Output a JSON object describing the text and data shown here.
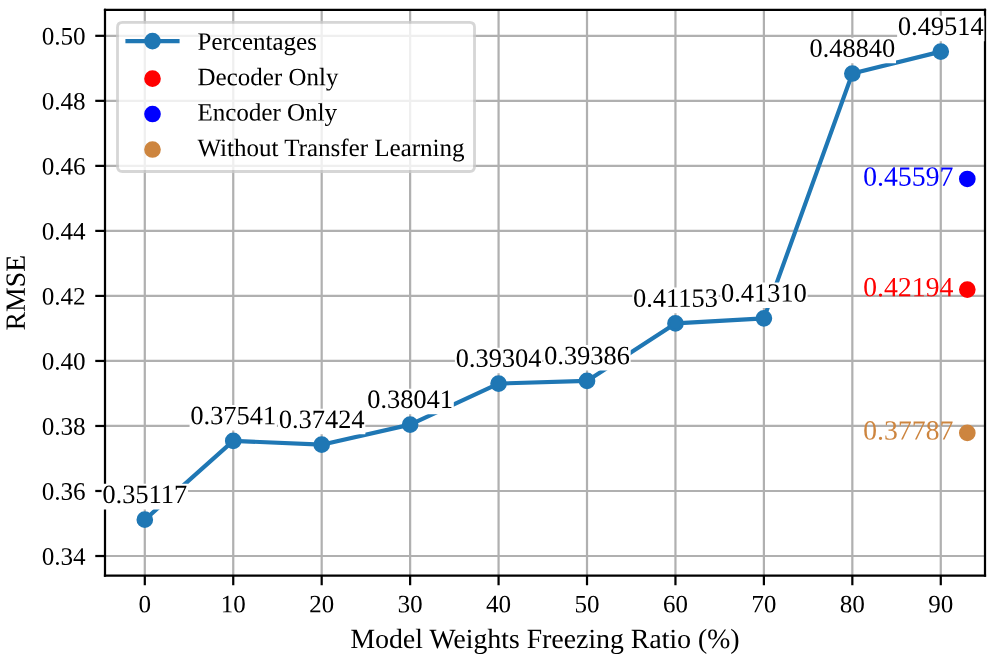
{
  "chart_data": {
    "type": "line",
    "xlabel": "Model Weights Freezing Ratio (%)",
    "ylabel": "RMSE",
    "xlim": [
      -4.5,
      95
    ],
    "xticks": [
      0,
      10,
      20,
      30,
      40,
      50,
      60,
      70,
      80,
      90
    ],
    "ylim": [
      0.334,
      0.508
    ],
    "yticks": [
      {
        "value": 0.34,
        "label": "0.34"
      },
      {
        "value": 0.36,
        "label": "0.36"
      },
      {
        "value": 0.38,
        "label": "0.38"
      },
      {
        "value": 0.4,
        "label": "0.40"
      },
      {
        "value": 0.42,
        "label": "0.42"
      },
      {
        "value": 0.44,
        "label": "0.44"
      },
      {
        "value": 0.46,
        "label": "0.46"
      },
      {
        "value": 0.48,
        "label": "0.48"
      },
      {
        "value": 0.5,
        "label": "0.50"
      }
    ],
    "grid": true,
    "legend": "top left",
    "marker": "circle",
    "series": [
      {
        "name": "Percentages",
        "color": "#1f77b4",
        "x": [
          0,
          10,
          20,
          30,
          40,
          50,
          60,
          70,
          80,
          90
        ],
        "values": [
          0.35117,
          0.37541,
          0.37424,
          0.38041,
          0.39304,
          0.39386,
          0.41153,
          0.4131,
          0.4884,
          0.49514
        ],
        "value_labels": [
          "0.35117",
          "0.37541",
          "0.37424",
          "0.38041",
          "0.39304",
          "0.39386",
          "0.41153",
          "0.41310",
          "0.48840",
          "0.49514"
        ]
      },
      {
        "name": "Decoder Only",
        "type": "scatter",
        "color": "#ff0000",
        "x": [
          93
        ],
        "values": [
          0.42194
        ],
        "value_labels": [
          "0.42194"
        ]
      },
      {
        "name": "Encoder Only",
        "type": "scatter",
        "color": "#0000ff",
        "x": [
          93
        ],
        "values": [
          0.45597
        ],
        "value_labels": [
          "0.45597"
        ]
      },
      {
        "name": "Without Transfer Learning",
        "type": "scatter",
        "color": "#cd853f",
        "x": [
          93
        ],
        "values": [
          0.37787
        ],
        "value_labels": [
          "0.37787"
        ]
      }
    ]
  }
}
